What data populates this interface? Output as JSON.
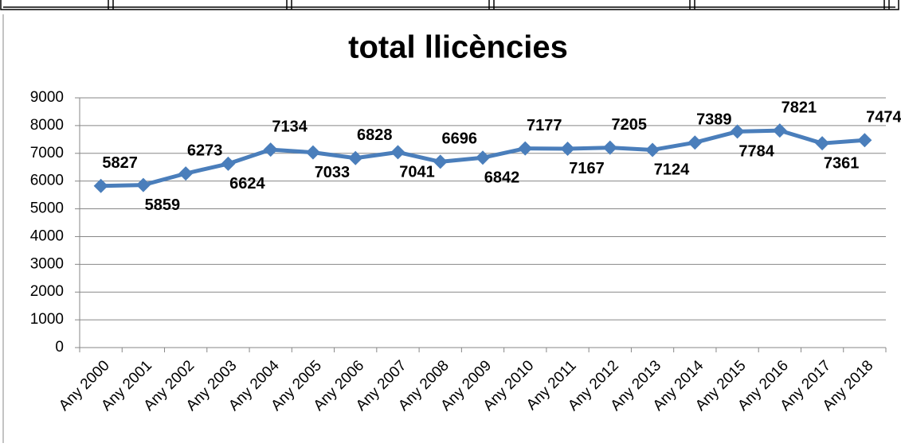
{
  "chart_data": {
    "type": "line",
    "title": "total llicències",
    "categories": [
      "Any 2000",
      "Any 2001",
      "Any 2002",
      "Any 2003",
      "Any 2004",
      "Any 2005",
      "Any 2006",
      "Any 2007",
      "Any 2008",
      "Any 2009",
      "Any 2010",
      "Any 2011",
      "Any 2012",
      "Any 2013",
      "Any 2014",
      "Any 2015",
      "Any 2016",
      "Any 2017",
      "Any 2018"
    ],
    "series": [
      {
        "name": "total llicències",
        "color": "#4a7ebb",
        "values": [
          5827,
          5859,
          6273,
          6624,
          7134,
          7033,
          6828,
          7041,
          6696,
          6842,
          7177,
          7167,
          7205,
          7124,
          7389,
          7784,
          7821,
          7361,
          7474
        ]
      }
    ],
    "ylim": [
      0,
      9000
    ],
    "yticks": [
      0,
      1000,
      2000,
      3000,
      4000,
      5000,
      6000,
      7000,
      8000,
      9000
    ],
    "grid": true
  }
}
